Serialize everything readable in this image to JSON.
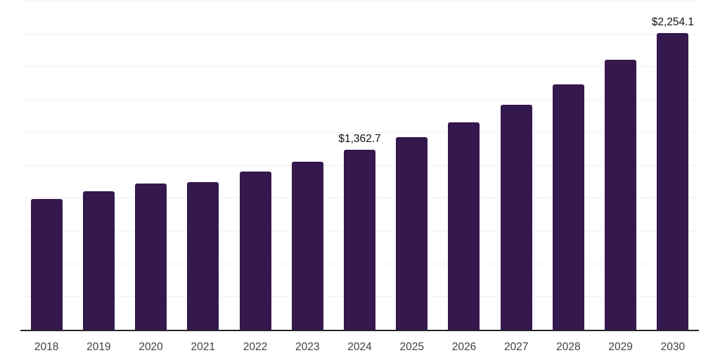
{
  "chart_data": {
    "type": "bar",
    "title": "",
    "xlabel": "",
    "ylabel": "",
    "categories": [
      "2018",
      "2019",
      "2020",
      "2021",
      "2022",
      "2023",
      "2024",
      "2025",
      "2026",
      "2027",
      "2028",
      "2029",
      "2030"
    ],
    "values": [
      990.2,
      1051.6,
      1110.8,
      1116.2,
      1199.4,
      1274.0,
      1362.7,
      1459.1,
      1574.0,
      1705.3,
      1860.5,
      2048.2,
      2254.1
    ],
    "data_labels": [
      null,
      null,
      null,
      null,
      null,
      null,
      "$1,362.7",
      null,
      null,
      null,
      null,
      null,
      "$2,254.1"
    ],
    "ylim": [
      0,
      2500
    ],
    "gridline_interval": 250,
    "grid": true,
    "legend": false,
    "bar_color": "#35184e",
    "axis_color": "#262626",
    "gridline_color": "#f0f0f0",
    "data_label_color": "#111111",
    "tick_label_color": "#404040"
  }
}
